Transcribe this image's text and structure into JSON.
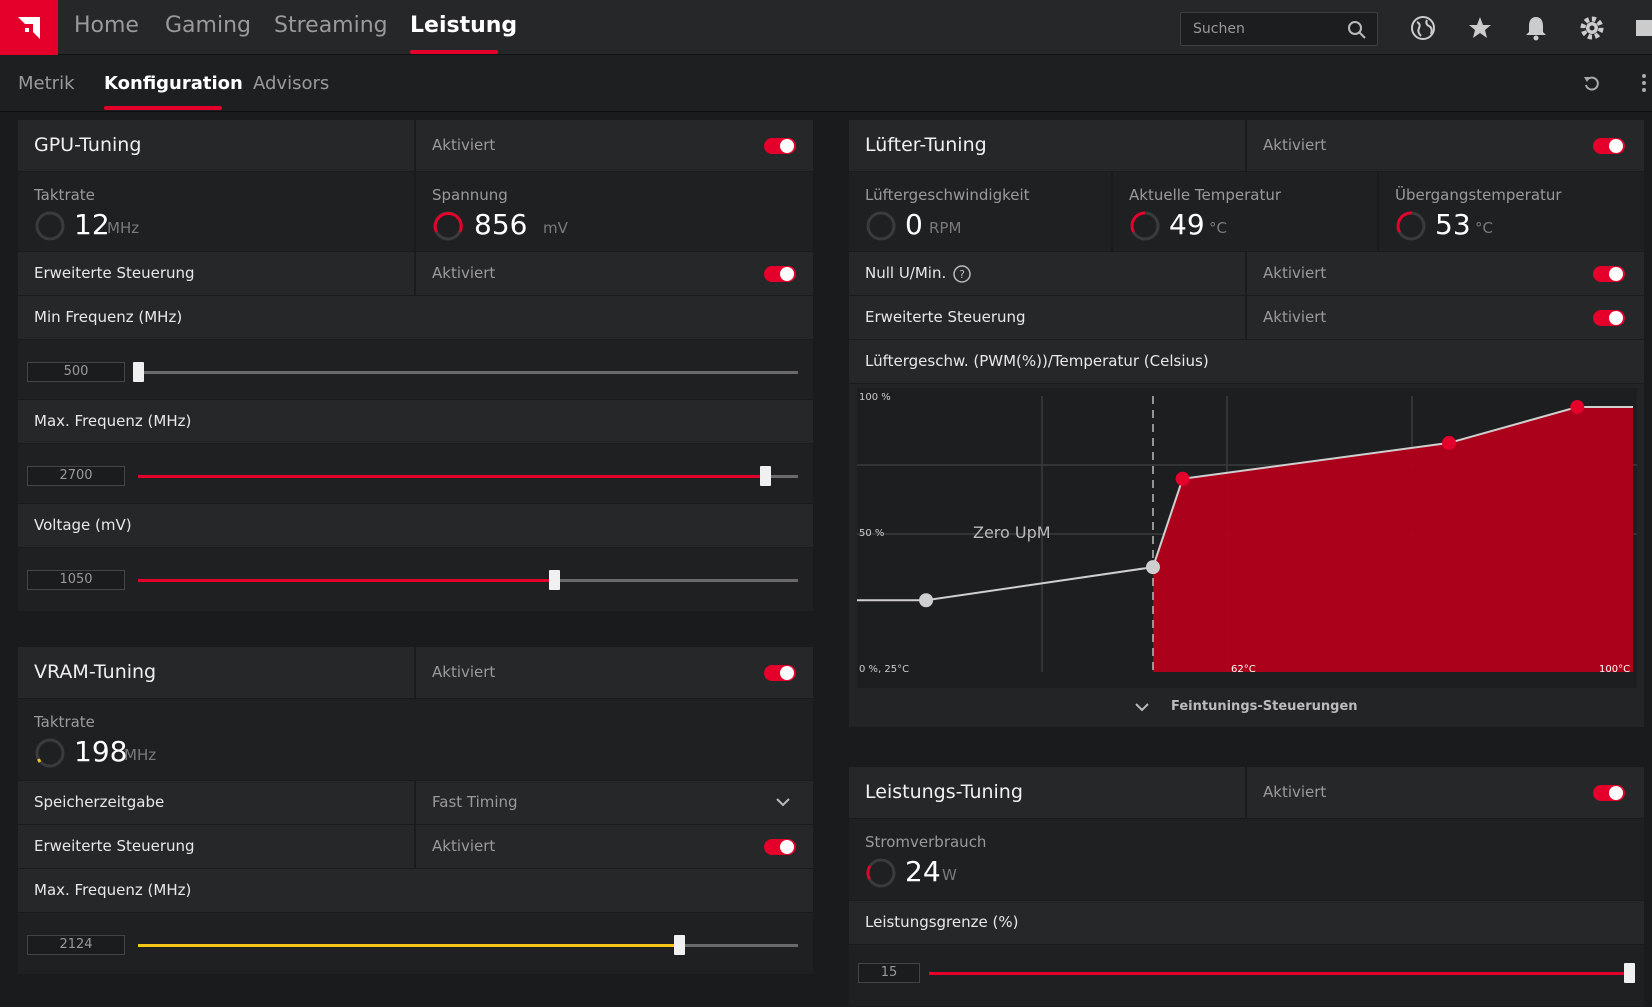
{
  "nav": {
    "items": [
      "Home",
      "Gaming",
      "Streaming",
      "Leistung"
    ],
    "active": "Leistung",
    "search_placeholder": "Suchen"
  },
  "subnav": {
    "items": [
      "Metrik",
      "Konfiguration",
      "Advisors"
    ],
    "active": "Konfiguration"
  },
  "colors": {
    "accent": "#e4002b",
    "vram_accent": "#f5c518"
  },
  "gpu_tuning": {
    "title": "GPU-Tuning",
    "status": "Aktiviert",
    "clock_label": "Taktrate",
    "clock_value": "12",
    "clock_unit": "MHz",
    "voltage_label": "Spannung",
    "voltage_value": "856",
    "voltage_unit": "mV",
    "advanced_label": "Erweiterte Steuerung",
    "advanced_status": "Aktiviert",
    "min_freq_label": "Min Frequenz (MHz)",
    "min_freq_value": "500",
    "min_freq_fraction": 0.0,
    "max_freq_label": "Max. Frequenz (MHz)",
    "max_freq_value": "2700",
    "max_freq_fraction": 0.95,
    "voltage_slider_label": "Voltage (mV)",
    "voltage_slider_value": "1050",
    "voltage_slider_fraction": 0.63
  },
  "vram_tuning": {
    "title": "VRAM-Tuning",
    "status": "Aktiviert",
    "clock_label": "Taktrate",
    "clock_value": "198",
    "clock_unit": "MHz",
    "timing_label": "Speicherzeitgabe",
    "timing_value": "Fast Timing",
    "advanced_label": "Erweiterte Steuerung",
    "advanced_status": "Aktiviert",
    "max_freq_label": "Max. Frequenz (MHz)",
    "max_freq_value": "2124",
    "max_freq_fraction": 0.82
  },
  "fan_tuning": {
    "title": "Lüfter-Tuning",
    "status": "Aktiviert",
    "speed_label": "Lüftergeschwindigkeit",
    "speed_value": "0",
    "speed_unit": "RPM",
    "temp_label": "Aktuelle Temperatur",
    "temp_value": "49",
    "temp_unit": "°C",
    "junction_label": "Übergangstemperatur",
    "junction_value": "53",
    "junction_unit": "°C",
    "zero_rpm_label": "Null U/Min.",
    "zero_rpm_status": "Aktiviert",
    "advanced_label": "Erweiterte Steuerung",
    "advanced_status": "Aktiviert",
    "curve_label": "Lüftergeschw. (PWM(%))/Temperatur (Celsius)",
    "fine_tuning_label": "Feintunings-Steuerungen"
  },
  "chart_data": {
    "type": "line",
    "x_labels": [
      "0 %, 25°C",
      "62°C",
      "100°C"
    ],
    "y_labels": [
      "100 %",
      "50 %"
    ],
    "annotation": "Zero UpM",
    "xlim": [
      25,
      100
    ],
    "ylim": [
      0,
      100
    ],
    "zero_rpm_threshold": 55,
    "points": [
      {
        "x": 32,
        "y": 26,
        "active": false
      },
      {
        "x": 55,
        "y": 38,
        "active": false
      },
      {
        "x": 58,
        "y": 70,
        "active": true
      },
      {
        "x": 85,
        "y": 83,
        "active": true
      },
      {
        "x": 98,
        "y": 96,
        "active": true
      }
    ],
    "grid": true
  },
  "power_tuning": {
    "title": "Leistungs-Tuning",
    "status": "Aktiviert",
    "power_label": "Stromverbrauch",
    "power_value": "24",
    "power_unit": "W",
    "limit_label": "Leistungsgrenze (%)",
    "limit_value": "15",
    "limit_fraction": 1.0
  }
}
